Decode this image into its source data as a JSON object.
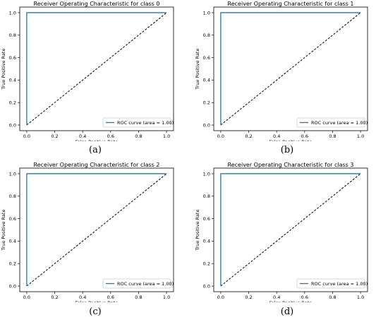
{
  "colors": {
    "roc": "#1f77b4",
    "diagonal": "#000000",
    "axes": "#000000",
    "legend_border": "#cccccc"
  },
  "chart_data": [
    {
      "type": "line",
      "title": "Receiver Operating Characteristic for class 0",
      "xlabel": "False Positive Rate",
      "ylabel": "True Positive Rate",
      "xlim": [
        0,
        1
      ],
      "ylim": [
        0,
        1
      ],
      "xticks": [
        "0.0",
        "0.2",
        "0.4",
        "0.6",
        "0.8",
        "1.0"
      ],
      "yticks": [
        "0.0",
        "0.2",
        "0.4",
        "0.6",
        "0.8",
        "1.0"
      ],
      "grid": false,
      "legend": "bottom-right",
      "series": [
        {
          "name": "ROC curve (area = 1.00)",
          "x": [
            0,
            0,
            1
          ],
          "y": [
            0,
            1,
            1
          ]
        },
        {
          "x": [
            0,
            1
          ],
          "y": [
            0,
            1
          ],
          "style": "dashed"
        }
      ],
      "caption": "(a)"
    },
    {
      "type": "line",
      "title": "Receiver Operating Characteristic for class 1",
      "xlabel": "False Positive Rate",
      "ylabel": "True Positive Rate",
      "xlim": [
        0,
        1
      ],
      "ylim": [
        0,
        1
      ],
      "xticks": [
        "0.0",
        "0.2",
        "0.4",
        "0.6",
        "0.8",
        "1.0"
      ],
      "yticks": [
        "0.0",
        "0.2",
        "0.4",
        "0.6",
        "0.8",
        "1.0"
      ],
      "grid": false,
      "legend": "bottom-right",
      "series": [
        {
          "name": "ROC curve (area = 1.00)",
          "x": [
            0,
            0,
            1
          ],
          "y": [
            0,
            1,
            1
          ]
        },
        {
          "x": [
            0,
            1
          ],
          "y": [
            0,
            1
          ],
          "style": "dashed"
        }
      ],
      "caption": "(b)"
    },
    {
      "type": "line",
      "title": "Receiver Operating Characteristic for class 2",
      "xlabel": "False Positive Rate",
      "ylabel": "True Positive Rate",
      "xlim": [
        0,
        1
      ],
      "ylim": [
        0,
        1
      ],
      "xticks": [
        "0.0",
        "0.2",
        "0.4",
        "0.6",
        "0.8",
        "1.0"
      ],
      "yticks": [
        "0.0",
        "0.2",
        "0.4",
        "0.6",
        "0.8",
        "1.0"
      ],
      "grid": false,
      "legend": "bottom-right",
      "series": [
        {
          "name": "ROC curve (area = 1.00)",
          "x": [
            0,
            0,
            1
          ],
          "y": [
            0,
            1,
            1
          ]
        },
        {
          "x": [
            0,
            1
          ],
          "y": [
            0,
            1
          ],
          "style": "dashed"
        }
      ],
      "caption": "(c)"
    },
    {
      "type": "line",
      "title": "Receiver Operating Characteristic for class 3",
      "xlabel": "False Positive Rate",
      "ylabel": "True Positive Rate",
      "xlim": [
        0,
        1
      ],
      "ylim": [
        0,
        1
      ],
      "xticks": [
        "0.0",
        "0.2",
        "0.4",
        "0.6",
        "0.8",
        "1.0"
      ],
      "yticks": [
        "0.0",
        "0.2",
        "0.4",
        "0.6",
        "0.8",
        "1.0"
      ],
      "grid": false,
      "legend": "bottom-right",
      "series": [
        {
          "name": "ROC curve (area = 1.00)",
          "x": [
            0,
            0,
            1
          ],
          "y": [
            0,
            1,
            1
          ]
        },
        {
          "x": [
            0,
            1
          ],
          "y": [
            0,
            1
          ],
          "style": "dashed"
        }
      ],
      "caption": "(d)"
    }
  ]
}
